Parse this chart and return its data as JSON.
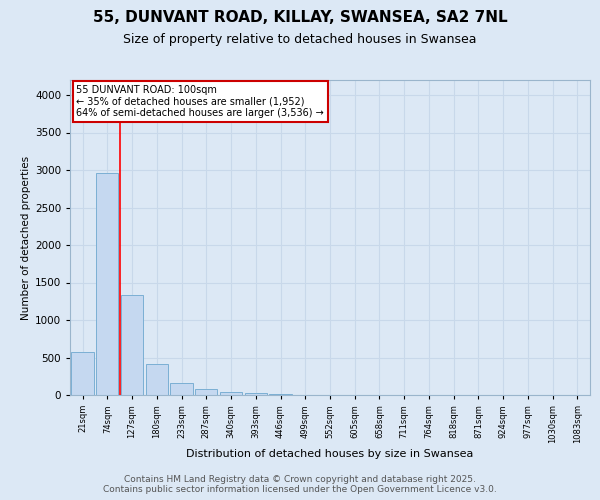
{
  "title": "55, DUNVANT ROAD, KILLAY, SWANSEA, SA2 7NL",
  "subtitle": "Size of property relative to detached houses in Swansea",
  "xlabel": "Distribution of detached houses by size in Swansea",
  "ylabel": "Number of detached properties",
  "categories": [
    "21sqm",
    "74sqm",
    "127sqm",
    "180sqm",
    "233sqm",
    "287sqm",
    "340sqm",
    "393sqm",
    "446sqm",
    "499sqm",
    "552sqm",
    "605sqm",
    "658sqm",
    "711sqm",
    "764sqm",
    "818sqm",
    "871sqm",
    "924sqm",
    "977sqm",
    "1030sqm",
    "1083sqm"
  ],
  "values": [
    580,
    2960,
    1330,
    420,
    165,
    75,
    42,
    25,
    15,
    6,
    0,
    0,
    0,
    0,
    0,
    0,
    0,
    0,
    0,
    0,
    0
  ],
  "bar_color": "#c5d8f0",
  "bar_edge_color": "#7bafd4",
  "grid_color": "#c8d8ea",
  "background_color": "#dce8f5",
  "red_line_x": 1.5,
  "annotation_text": "55 DUNVANT ROAD: 100sqm\n← 35% of detached houses are smaller (1,952)\n64% of semi-detached houses are larger (3,536) →",
  "annotation_box_color": "#ffffff",
  "annotation_box_edge": "#cc0000",
  "footer": "Contains HM Land Registry data © Crown copyright and database right 2025.\nContains public sector information licensed under the Open Government Licence v3.0.",
  "ylim": [
    0,
    4200
  ],
  "yticks": [
    0,
    500,
    1000,
    1500,
    2000,
    2500,
    3000,
    3500,
    4000
  ],
  "title_fontsize": 11,
  "subtitle_fontsize": 9,
  "footer_fontsize": 6.5
}
